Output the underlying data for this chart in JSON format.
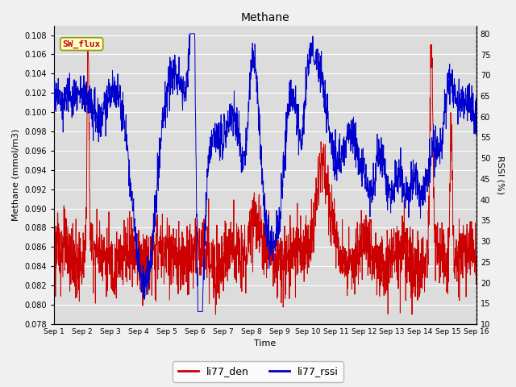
{
  "title": "Methane",
  "ylabel_left": "Methane (mmol/m3)",
  "ylabel_right": "RSSI (%)",
  "xlabel": "Time",
  "ylim_left": [
    0.078,
    0.109
  ],
  "ylim_right": [
    10,
    82
  ],
  "yticks_left": [
    0.078,
    0.08,
    0.082,
    0.084,
    0.086,
    0.088,
    0.09,
    0.092,
    0.094,
    0.096,
    0.098,
    0.1,
    0.102,
    0.104,
    0.106,
    0.108
  ],
  "yticks_right": [
    10,
    15,
    20,
    25,
    30,
    35,
    40,
    45,
    50,
    55,
    60,
    65,
    70,
    75,
    80
  ],
  "bg_color": "#dcdcdc",
  "grid_color": "#ffffff",
  "line_color_den": "#cc0000",
  "line_color_rssi": "#0000cc",
  "legend_label_den": "li77_den",
  "legend_label_rssi": "li77_rssi",
  "annotation_text": "SW_flux",
  "annotation_color": "#cc0000",
  "annotation_bg": "#ffffcc",
  "annotation_border": "#999900",
  "xtick_labels": [
    "Sep 1",
    "Sep 2",
    "Sep 3",
    "Sep 4",
    "Sep 5",
    "Sep 6",
    "Sep 7",
    "Sep 8",
    "Sep 9",
    "Sep 10",
    "Sep 11",
    "Sep 12",
    "Sep 13",
    "Sep 14",
    "Sep 15",
    "Sep 16"
  ],
  "n_points": 2000,
  "figwidth": 6.4,
  "figheight": 4.8,
  "dpi": 100
}
